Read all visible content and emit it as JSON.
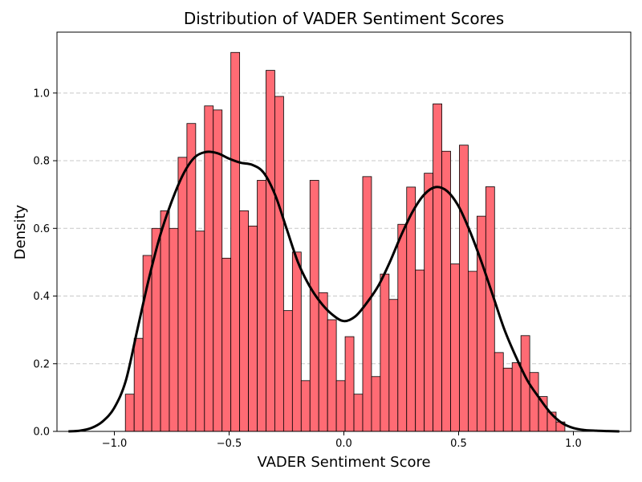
{
  "chart_data": {
    "type": "bar",
    "subtype": "histogram-with-kde",
    "title": "Distribution of VADER Sentiment Scores",
    "xlabel": "VADER Sentiment Score",
    "ylabel": "Density",
    "xlim": [
      -1.25,
      1.25
    ],
    "ylim": [
      0,
      1.18
    ],
    "xticks": [
      -1.0,
      -0.5,
      0.0,
      0.5,
      1.0
    ],
    "xtick_labels": [
      "−1.0",
      "−0.5",
      "0.0",
      "0.5",
      "1.0"
    ],
    "yticks": [
      0.0,
      0.2,
      0.4,
      0.6,
      0.8,
      1.0
    ],
    "ytick_labels": [
      "0.0",
      "0.2",
      "0.4",
      "0.6",
      "0.8",
      "1.0"
    ],
    "grid": "y-dashed",
    "bar_color": "#ff6b74",
    "bar_edge_color": "#000000",
    "kde_color": "#000000",
    "bin_start": -0.952,
    "bin_width": 0.0383,
    "values": [
      0.11,
      0.275,
      0.52,
      0.6,
      0.652,
      0.6,
      0.81,
      0.91,
      0.592,
      0.962,
      0.95,
      0.512,
      1.12,
      0.652,
      0.607,
      0.742,
      1.067,
      0.99,
      0.357,
      0.53,
      0.15,
      0.742,
      0.41,
      0.33,
      0.15,
      0.28,
      0.11,
      0.753,
      0.162,
      0.465,
      0.39,
      0.612,
      0.722,
      0.477,
      0.763,
      0.968,
      0.828,
      0.495,
      0.846,
      0.473,
      0.636,
      0.723,
      0.233,
      0.187,
      0.203,
      0.283,
      0.174,
      0.103,
      0.057,
      0.028
    ],
    "kde": {
      "x": [
        -1.2,
        -1.15,
        -1.1,
        -1.05,
        -1.0,
        -0.95,
        -0.9,
        -0.85,
        -0.8,
        -0.75,
        -0.7,
        -0.65,
        -0.6,
        -0.55,
        -0.5,
        -0.45,
        -0.4,
        -0.35,
        -0.3,
        -0.25,
        -0.2,
        -0.15,
        -0.1,
        -0.05,
        0.0,
        0.05,
        0.1,
        0.15,
        0.2,
        0.25,
        0.3,
        0.35,
        0.4,
        0.45,
        0.5,
        0.55,
        0.6,
        0.65,
        0.7,
        0.75,
        0.8,
        0.85,
        0.9,
        0.95,
        1.0,
        1.05,
        1.1,
        1.15,
        1.2
      ],
      "y": [
        0.0,
        0.002,
        0.01,
        0.03,
        0.07,
        0.15,
        0.3,
        0.45,
        0.58,
        0.68,
        0.76,
        0.81,
        0.826,
        0.822,
        0.806,
        0.794,
        0.788,
        0.765,
        0.7,
        0.6,
        0.5,
        0.43,
        0.38,
        0.345,
        0.326,
        0.34,
        0.38,
        0.43,
        0.5,
        0.58,
        0.65,
        0.7,
        0.722,
        0.71,
        0.665,
        0.59,
        0.5,
        0.4,
        0.3,
        0.22,
        0.15,
        0.1,
        0.055,
        0.025,
        0.01,
        0.004,
        0.002,
        0.001,
        0.0
      ]
    }
  }
}
